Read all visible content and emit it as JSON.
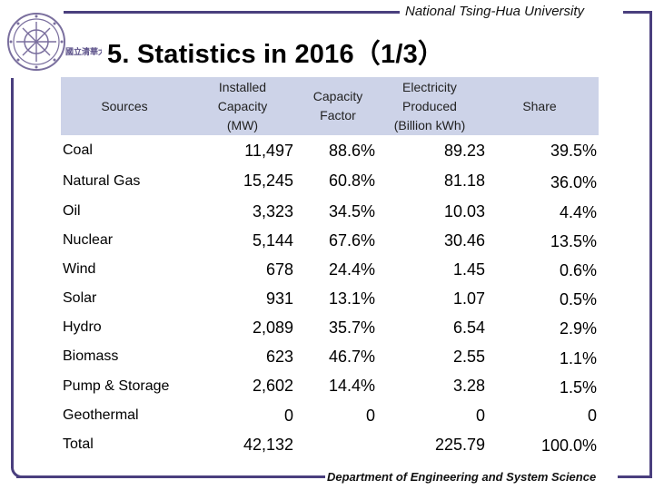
{
  "header": {
    "university": "National Tsing-Hua University",
    "logo_text": "國立清華大學"
  },
  "title": "5. Statistics in 2016（1/3）",
  "footer": {
    "department": "Department of Engineering and System Science"
  },
  "table": {
    "columns": [
      "Sources",
      "Installed\nCapacity\n(MW)",
      "Capacity\nFactor",
      "Electricity\nProduced\n(Billion kWh)",
      "Share"
    ],
    "rows": [
      {
        "source": "Coal",
        "capacity": "11,497",
        "factor": "88.6%",
        "produced": "89.23",
        "share": "39.5%"
      },
      {
        "source": "Natural Gas",
        "capacity": "15,245",
        "factor": "60.8%",
        "produced": "81.18",
        "share": "36.0%"
      },
      {
        "source": "Oil",
        "capacity": "3,323",
        "factor": "34.5%",
        "produced": "10.03",
        "share": "4.4%"
      },
      {
        "source": "Nuclear",
        "capacity": "5,144",
        "factor": "67.6%",
        "produced": "30.46",
        "share": "13.5%"
      },
      {
        "source": "Wind",
        "capacity": "678",
        "factor": "24.4%",
        "produced": "1.45",
        "share": "0.6%"
      },
      {
        "source": "Solar",
        "capacity": "931",
        "factor": "13.1%",
        "produced": "1.07",
        "share": "0.5%"
      },
      {
        "source": "Hydro",
        "capacity": "2,089",
        "factor": "35.7%",
        "produced": "6.54",
        "share": "2.9%"
      },
      {
        "source": "Biomass",
        "capacity": "623",
        "factor": "46.7%",
        "produced": "2.55",
        "share": "1.1%"
      },
      {
        "source": "Pump & Storage",
        "capacity": "2,602",
        "factor": "14.4%",
        "produced": "3.28",
        "share": "1.5%"
      },
      {
        "source": "Geothermal",
        "capacity": "0",
        "factor": "0",
        "produced": "0",
        "share": "0"
      },
      {
        "source": "Total",
        "capacity": "42,132",
        "factor": "",
        "produced": "225.79",
        "share": "100.0%"
      }
    ]
  }
}
